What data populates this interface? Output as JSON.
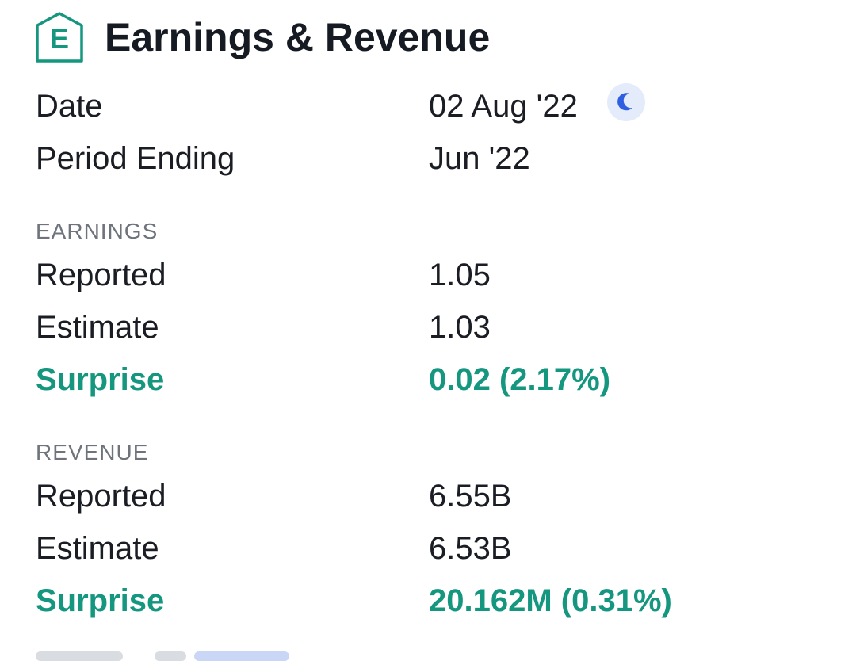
{
  "header": {
    "badge_letter": "E",
    "title": "Earnings & Revenue",
    "icon": "earnings-badge-icon"
  },
  "info": {
    "date_label": "Date",
    "date_value": "02 Aug '22",
    "date_icon": "moon-icon",
    "period_label": "Period Ending",
    "period_value": "Jun '22"
  },
  "earnings": {
    "section_title": "EARNINGS",
    "reported_label": "Reported",
    "reported_value": "1.05",
    "estimate_label": "Estimate",
    "estimate_value": "1.03",
    "surprise_label": "Surprise",
    "surprise_value": "0.02 (2.17%)"
  },
  "revenue": {
    "section_title": "REVENUE",
    "reported_label": "Reported",
    "reported_value": "6.55B",
    "estimate_label": "Estimate",
    "estimate_value": "6.53B",
    "surprise_label": "Surprise",
    "surprise_value": "20.162M (0.31%)"
  },
  "colors": {
    "accent": "#14967f",
    "moon": "#2f5fe0",
    "moon_bg": "#e4ebfb",
    "text": "#161a23",
    "muted": "#6e737c"
  }
}
